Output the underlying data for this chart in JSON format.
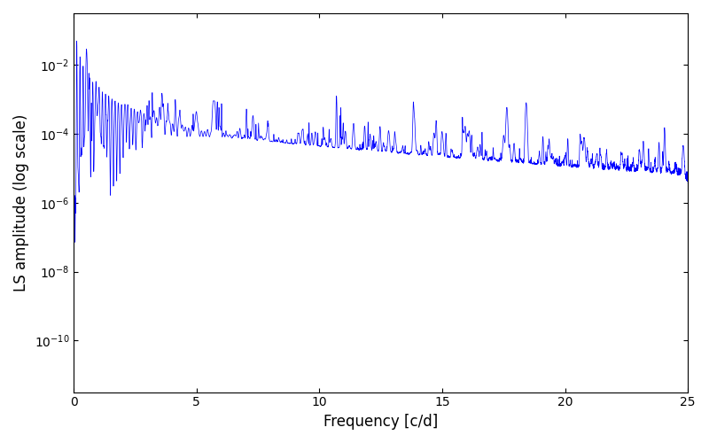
{
  "xlabel": "Frequency [c/d]",
  "ylabel": "LS amplitude (log scale)",
  "line_color": "#0000ff",
  "xlim": [
    0,
    25
  ],
  "ylim_log": [
    -11.5,
    -0.5
  ],
  "yticks": [
    -10,
    -8,
    -6,
    -4,
    -2
  ],
  "figsize": [
    8.0,
    5.0
  ],
  "dpi": 100,
  "seed": 42,
  "n_points": 5000,
  "freq_max": 25.0
}
